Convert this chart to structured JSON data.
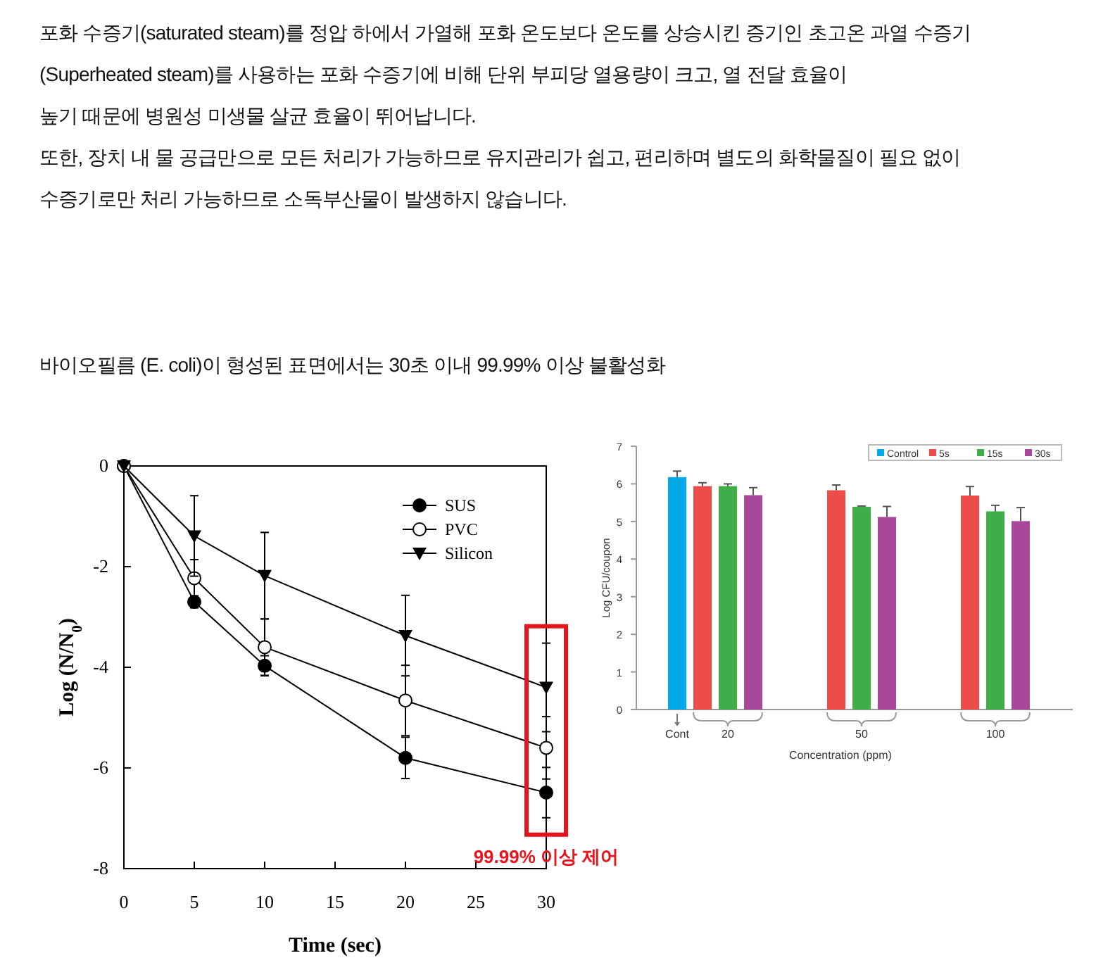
{
  "chart_data": [
    {
      "type": "line",
      "title": "바이오필름 (E. coli)이 형성된 표면에서는 30초 이내 99.99% 이상 불활성화",
      "xlabel": "Time (sec)",
      "ylabel": "Log (N/N$_{0}$)",
      "x": [
        0,
        5,
        10,
        20,
        30
      ],
      "series": [
        {
          "name": "SUS",
          "color": "#000000",
          "marker": "circle",
          "values": [
            0,
            -2.7,
            -3.97,
            -5.8,
            -6.49
          ],
          "errors": [
            null,
            0.12,
            0.2,
            0.41,
            0.5
          ]
        },
        {
          "name": "PVC",
          "color": "#000000",
          "marker": "circle-open",
          "values": [
            0,
            -2.23,
            -3.6,
            -4.66,
            -5.6
          ],
          "errors": [
            null,
            0.37,
            0.56,
            0.7,
            0.62
          ]
        },
        {
          "name": "Silicon",
          "color": "#000000",
          "marker": "triangle-down",
          "values": [
            0,
            -1.39,
            -2.18,
            -3.37,
            -4.4
          ],
          "errors": [
            null,
            0.8,
            0.86,
            0.8,
            0.88
          ]
        }
      ],
      "xlim": [
        0,
        30
      ],
      "ylim": [
        -8,
        0
      ],
      "xticks": [
        0,
        5,
        10,
        15,
        20,
        25,
        30
      ],
      "yticks": [
        0,
        -2,
        -4,
        -6,
        -8
      ],
      "legend": "top right",
      "line_style": "solid",
      "annotations": [
        "포화 수증기(saturated steam)를 정압 하에서 가열해 포화 온도보다 온도를 상승시킨 증기인 초고온 과열 수증기",
        "(Superheated steam)를 사용하는 포화 수증기에 비해 단위 부피당 열용량이 크고, 열 전달 효율이",
        "높기 때문에 병원성 미생물 살균 효율이 뛰어납니다.",
        "또한, 장치 내 물 공급만으로 모든 처리가 가능하므로 유지관리가 쉽고, 편리하며 별도의 화학물질이 필요 없이",
        "수증기로만 처리 가능하므로 소독부산물이 발생하지 않습니다.",
        {
          "text": "99.99% 이상 제어",
          "x": 30,
          "y": -6.49
        }
      ]
    },
    {
      "type": "bar",
      "xlabel": "Concentration (ppm)",
      "ylabel": "Log CFU/coupon",
      "categories": [
        "Cont",
        "20",
        "50",
        "100"
      ],
      "series": [
        {
          "name": "Control",
          "color": "#00a9e8",
          "values": [
            6.18,
            null,
            null,
            null
          ],
          "errors": [
            0.16,
            null,
            null,
            null
          ]
        },
        {
          "name": "5s",
          "color": "#ee4b4b",
          "values": [
            null,
            5.94,
            5.83,
            5.69
          ],
          "errors": [
            null,
            0.09,
            0.14,
            0.24
          ]
        },
        {
          "name": "15s",
          "color": "#3fae49",
          "values": [
            null,
            5.94,
            5.39,
            5.27
          ],
          "errors": [
            null,
            0.06,
            0.02,
            0.16
          ]
        },
        {
          "name": "30s",
          "color": "#a9489a",
          "values": [
            null,
            5.7,
            5.12,
            5.01
          ],
          "errors": [
            null,
            0.2,
            0.28,
            0.36
          ]
        }
      ],
      "ylim": [
        0,
        7
      ],
      "yticks": [
        0,
        1,
        2,
        3,
        4,
        5,
        6,
        7
      ],
      "legend": "top right"
    }
  ]
}
